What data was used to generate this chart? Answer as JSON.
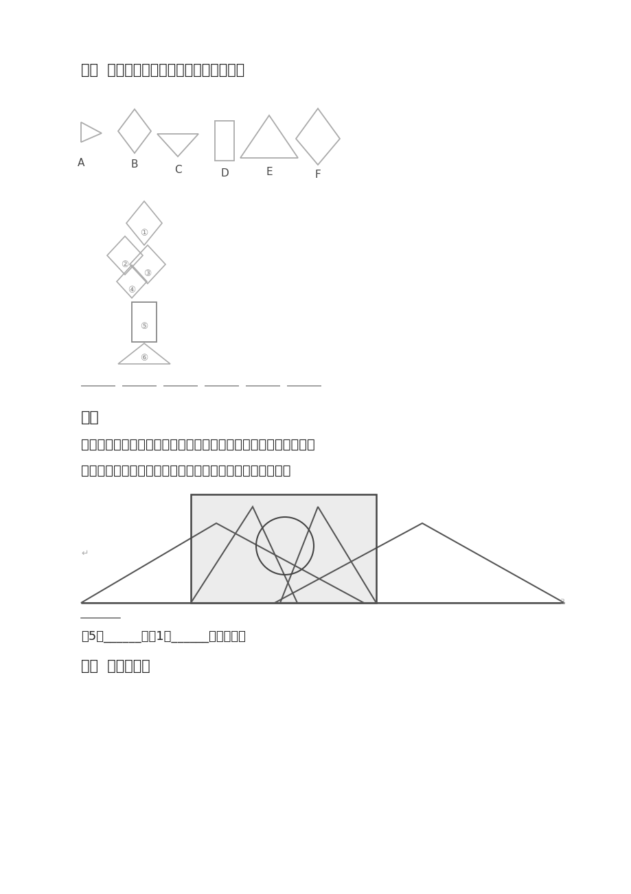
{
  "bg_color": "#ffffff",
  "title_5": "五、  拼图我最行。观察这些图形我会拼。",
  "title_6": "六、",
  "title_7": "七、  看图填空。",
  "desc_6a": "观察日落西山。数一数有哪些图形拼成的。将太阳涂成红色，将上",
  "desc_6b": "边的山涂成黄色，将下边的山涂成绿色，中间的涂成蓝色。",
  "answer_text": "有5个______形和1个______形拼成的。",
  "shape_labels": [
    "A",
    "B",
    "C",
    "D",
    "E",
    "F"
  ],
  "ec_light": "#aaaaaa",
  "ec_dark": "#555555",
  "text_dark": "#222222",
  "text_mid": "#555555"
}
